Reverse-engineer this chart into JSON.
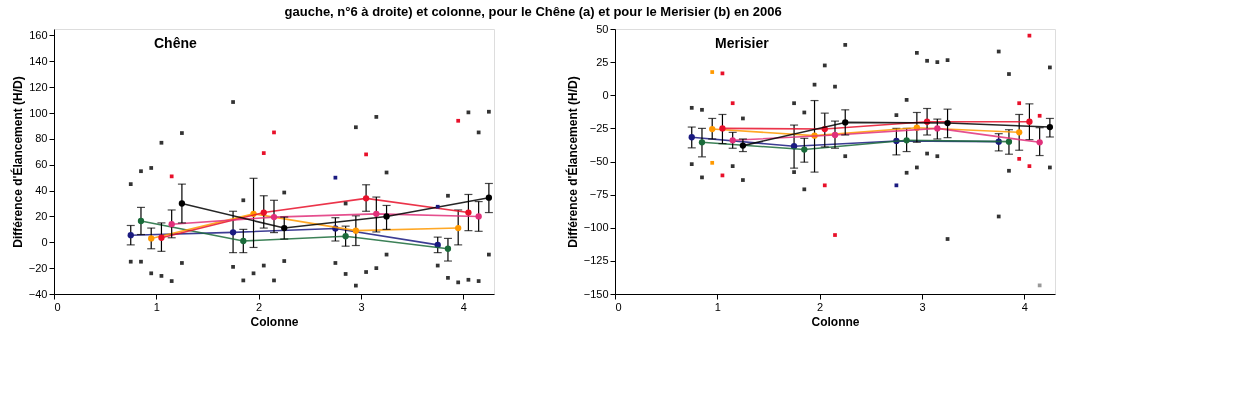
{
  "chart_data": [
    {
      "type": "line",
      "title": "Chêne",
      "annotations": [
        "gauche, n°6 à droite) et colonne, pour le Chêne (a) et pour le Merisier (b) en 2006"
      ],
      "xlabel": "Colonne",
      "ylabel": "Différence d'Élancement (H/D)",
      "xlim": [
        0,
        4.3
      ],
      "xticks": [
        0,
        1,
        2,
        3,
        4
      ],
      "ylim": [
        -40,
        165
      ],
      "yticks": [
        -40,
        -20,
        0,
        20,
        40,
        60,
        80,
        100,
        120,
        140,
        160
      ],
      "grid": false,
      "marker": "circle",
      "series": [
        {
          "color": "#1a1a80",
          "x": [
            0.75,
            1.75,
            2.75,
            3.75
          ],
          "values": [
            5.5,
            7.7,
            10.7,
            -2
          ],
          "errors": [
            [
              -2,
              13
            ],
            [
              -8,
              24
            ],
            [
              1,
              19
            ],
            [
              -8,
              4
            ]
          ]
        },
        {
          "color": "#1a6b3a",
          "x": [
            0.85,
            1.85,
            2.85,
            3.85
          ],
          "values": [
            16.5,
            1,
            4.7,
            -5
          ],
          "errors": [
            [
              6,
              27
            ],
            [
              -8,
              10
            ],
            [
              -3,
              12.5
            ],
            [
              -14.5,
              3
            ]
          ]
        },
        {
          "color": "#ff9900",
          "x": [
            0.95,
            1.95,
            2.95,
            3.95
          ],
          "values": [
            3,
            22,
            9,
            11
          ],
          "errors": [
            [
              -5,
              11
            ],
            [
              -4,
              49.5
            ],
            [
              -2.5,
              20.5
            ],
            [
              -2,
              25
            ]
          ]
        },
        {
          "color": "#e8102a",
          "x": [
            1.05,
            2.05,
            3.05,
            4.05
          ],
          "values": [
            3.5,
            23,
            34,
            23
          ],
          "errors": [
            [
              -7,
              15
            ],
            [
              11,
              36
            ],
            [
              24,
              44.5
            ],
            [
              9,
              37
            ]
          ]
        },
        {
          "color": "#e0307a",
          "x": [
            1.15,
            2.15,
            3.15,
            4.15
          ],
          "values": [
            14,
            19.5,
            22,
            20
          ],
          "errors": [
            [
              3.5,
              25
            ],
            [
              7.5,
              32.5
            ],
            [
              8,
              35
            ],
            [
              8.5,
              31.5
            ]
          ]
        },
        {
          "color": "#000000",
          "x": [
            1.25,
            2.25,
            3.25,
            4.25
          ],
          "values": [
            30,
            11,
            20,
            34.5
          ],
          "errors": [
            [
              15,
              45
            ],
            [
              2.5,
              19.5
            ],
            [
              10,
              28.5
            ],
            [
              23,
              45.5
            ]
          ]
        },
        {
          "type": "scatter",
          "marker": "square",
          "x": [
            0.75,
            0.75,
            0.85,
            0.85,
            0.95,
            0.95,
            1.05,
            1.05,
            1.15,
            1.15,
            1.25,
            1.25,
            1.75,
            1.75,
            1.85,
            1.85,
            1.95,
            2.05,
            2.05,
            2.15,
            2.15,
            2.25,
            2.25,
            2.75,
            2.75,
            2.85,
            2.85,
            2.95,
            2.95,
            3.05,
            3.05,
            3.15,
            3.15,
            3.25,
            3.25,
            3.75,
            3.75,
            3.85,
            3.85,
            3.95,
            3.95,
            4.05,
            4.05,
            4.15,
            4.15,
            4.25,
            4.25
          ],
          "values": [
            45,
            -15,
            55,
            -15,
            57.5,
            -24,
            77,
            -26,
            51,
            -30,
            84.5,
            -16,
            108.5,
            -19,
            32.5,
            -29.5,
            -24,
            69,
            -18,
            85,
            -29.5,
            38.5,
            -14.5,
            50,
            -16,
            30,
            -24.5,
            89,
            -33.5,
            68,
            -23,
            97,
            -20,
            54,
            -9.5,
            27.5,
            -18,
            36,
            -27.5,
            94,
            -31,
            100.5,
            -29,
            85,
            -30,
            101,
            -9.5
          ],
          "colors": [
            "#333333",
            "#333333",
            "#333333",
            "#333333",
            "#333333",
            "#333333",
            "#333333",
            "#333333",
            "#e8102a",
            "#333333",
            "#333333",
            "#333333",
            "#333333",
            "#333333",
            "#333333",
            "#333333",
            "#333333",
            "#e8102a",
            "#333333",
            "#e8102a",
            "#333333",
            "#333333",
            "#333333",
            "#1a1a80",
            "#333333",
            "#333333",
            "#333333",
            "#333333",
            "#333333",
            "#e8102a",
            "#333333",
            "#333333",
            "#333333",
            "#333333",
            "#333333",
            "#1a1a80",
            "#333333",
            "#333333",
            "#333333",
            "#e8102a",
            "#333333",
            "#333333",
            "#333333",
            "#333333",
            "#333333",
            "#333333",
            "#333333"
          ]
        }
      ]
    },
    {
      "type": "line",
      "title": "Merisier",
      "xlabel": "Colonne",
      "ylabel": "Différence d'Élancement (H/D)",
      "xlim": [
        0,
        4.3
      ],
      "xticks": [
        0,
        1,
        2,
        3,
        4
      ],
      "ylim": [
        -150,
        50
      ],
      "yticks": [
        -150,
        -125,
        -100,
        -75,
        -50,
        -25,
        0,
        25,
        50
      ],
      "grid": false,
      "marker": "circle",
      "series": [
        {
          "color": "#1a1a80",
          "x": [
            0.75,
            1.75,
            2.75,
            3.75
          ],
          "values": [
            -31.7,
            -38.5,
            -34.5,
            -35
          ],
          "errors": [
            [
              -39.7,
              -24
            ],
            [
              -55,
              -22.5
            ],
            [
              -45,
              -25
            ],
            [
              -42,
              -29
            ]
          ]
        },
        {
          "color": "#1a6b3a",
          "x": [
            0.85,
            1.85,
            2.85,
            3.85
          ],
          "values": [
            -35.5,
            -41,
            -34,
            -35
          ],
          "errors": [
            [
              -46.5,
              -25
            ],
            [
              -50.5,
              -32.5
            ],
            [
              -42.5,
              -25
            ],
            [
              -44.5,
              -26
            ]
          ]
        },
        {
          "color": "#ff9900",
          "x": [
            0.95,
            1.95,
            2.95,
            3.95
          ],
          "values": [
            -25.5,
            -30.5,
            -24.5,
            -28
          ],
          "errors": [
            [
              -33,
              -17.5
            ],
            [
              -58,
              -4
            ],
            [
              -35.5,
              -13
            ],
            [
              -41.5,
              -14.5
            ]
          ]
        },
        {
          "color": "#e8102a",
          "x": [
            1.05,
            2.05,
            3.05,
            4.05
          ],
          "values": [
            -25,
            -25.5,
            -20,
            -20
          ],
          "errors": [
            [
              -36.5,
              -14.5
            ],
            [
              -39,
              -13.5
            ],
            [
              -30,
              -10
            ],
            [
              -33.5,
              -6.5
            ]
          ]
        },
        {
          "color": "#e0307a",
          "x": [
            1.15,
            2.15,
            3.15,
            4.15
          ],
          "values": [
            -34,
            -30,
            -25,
            -35.5
          ],
          "errors": [
            [
              -40,
              -28
            ],
            [
              -40,
              -19.5
            ],
            [
              -33,
              -18
            ],
            [
              -45.5,
              -24.5
            ]
          ]
        },
        {
          "color": "#000000",
          "x": [
            1.25,
            2.25,
            3.25,
            4.25
          ],
          "values": [
            -38,
            -20.5,
            -21,
            -24
          ],
          "errors": [
            [
              -42.5,
              -33
            ],
            [
              -30,
              -11
            ],
            [
              -32,
              -10.5
            ],
            [
              -31.5,
              -17.5
            ]
          ]
        },
        {
          "type": "scatter",
          "marker": "square",
          "x": [
            0.75,
            0.75,
            0.85,
            0.85,
            0.95,
            0.95,
            1.05,
            1.05,
            1.15,
            1.15,
            1.25,
            1.25,
            1.75,
            1.75,
            1.85,
            1.85,
            1.95,
            2.05,
            2.05,
            2.15,
            2.15,
            2.25,
            2.25,
            2.75,
            2.75,
            2.85,
            2.85,
            2.95,
            2.95,
            3.05,
            3.05,
            3.15,
            3.15,
            3.25,
            3.25,
            3.75,
            3.75,
            3.85,
            3.85,
            3.95,
            3.95,
            4.05,
            4.05,
            4.15,
            4.15,
            4.25,
            4.25
          ],
          "values": [
            -9.5,
            -52,
            -11,
            -62,
            17.5,
            -51,
            16.5,
            -60.5,
            -6,
            -53.5,
            -17.5,
            -64,
            -6,
            -58,
            -13,
            -71,
            8,
            22.5,
            -68,
            6.5,
            -105.5,
            38,
            -46,
            -15,
            -68,
            -3.5,
            -58.5,
            32,
            -54.5,
            26,
            -44,
            25,
            -46,
            26.5,
            -108.5,
            33,
            -91.5,
            16,
            -57,
            -6,
            -48,
            45,
            -53.5,
            -15.5,
            -143.5,
            21,
            -54.5
          ],
          "colors": [
            "#333333",
            "#333333",
            "#333333",
            "#333333",
            "#ff9900",
            "#ff9900",
            "#e8102a",
            "#e8102a",
            "#e8102a",
            "#333333",
            "#333333",
            "#333333",
            "#333333",
            "#333333",
            "#333333",
            "#333333",
            "#333333",
            "#333333",
            "#e8102a",
            "#333333",
            "#e8102a",
            "#333333",
            "#333333",
            "#333333",
            "#1a1a80",
            "#333333",
            "#333333",
            "#333333",
            "#333333",
            "#333333",
            "#333333",
            "#333333",
            "#333333",
            "#333333",
            "#333333",
            "#333333",
            "#333333",
            "#333333",
            "#333333",
            "#e8102a",
            "#e8102a",
            "#e8102a",
            "#e8102a",
            "#e8102a",
            "#999999",
            "#333333",
            "#333333"
          ]
        }
      ]
    }
  ]
}
